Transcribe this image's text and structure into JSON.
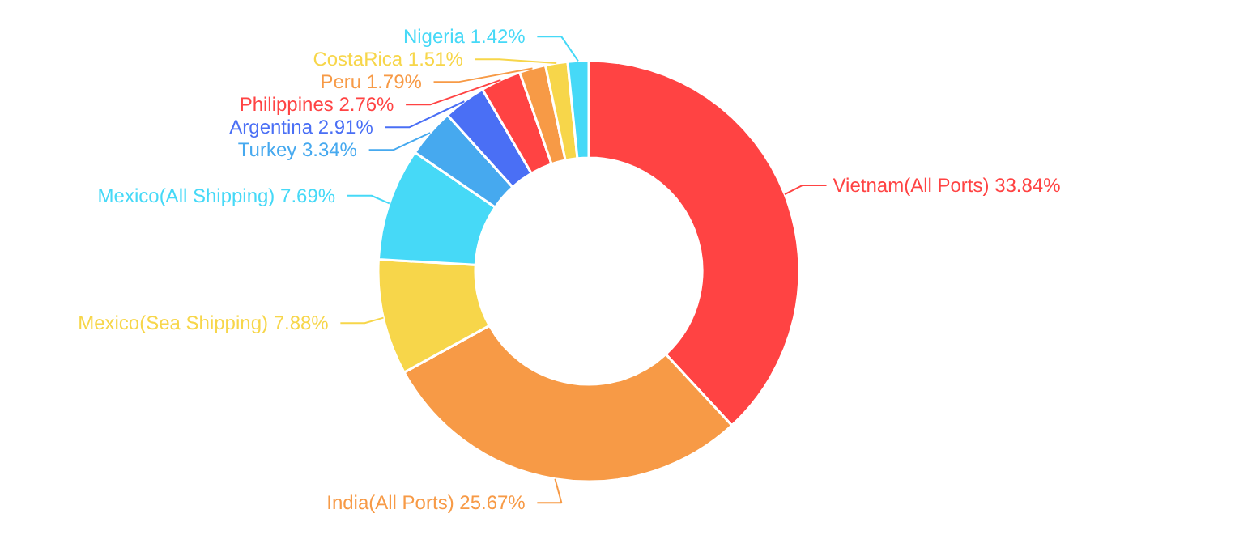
{
  "chart_data": {
    "type": "donut",
    "categories": [
      "Vietnam(All Ports)",
      "India(All Ports)",
      "Mexico(Sea Shipping)",
      "Mexico(All Shipping)",
      "Turkey",
      "Argentina",
      "Philippines",
      "Peru",
      "CostaRica",
      "Nigeria"
    ],
    "values": [
      33.84,
      25.67,
      7.88,
      7.69,
      3.34,
      2.91,
      2.76,
      1.79,
      1.51,
      1.42
    ],
    "value_labels": [
      "33.84%",
      "25.67%",
      "7.88%",
      "7.69%",
      "3.34%",
      "2.91%",
      "2.76%",
      "1.79%",
      "1.51%",
      "1.42%"
    ],
    "colors": [
      "#ff4343",
      "#f79a46",
      "#f7d64a",
      "#46d9f7",
      "#46a9ef",
      "#4a6ff5",
      "#ff4343",
      "#f79a46",
      "#f7d64a",
      "#46d9f7"
    ]
  }
}
